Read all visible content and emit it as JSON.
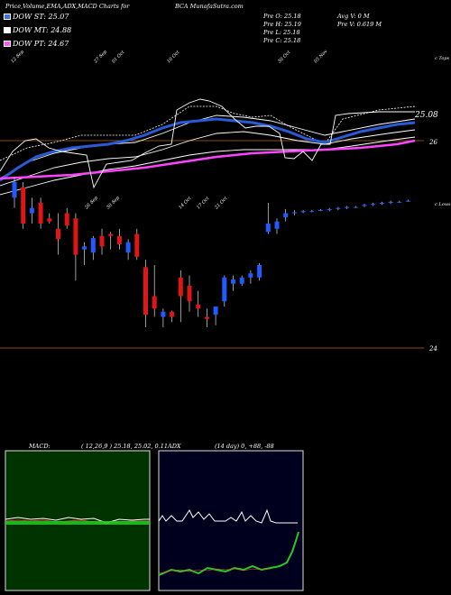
{
  "header": {
    "title_left": "Price,Volume,EMA,ADX,MACD Charts for",
    "title_center": "BCA MunafaSutra.com"
  },
  "legend": [
    {
      "label": "DOW ST: 25.07",
      "color": "#3b6fe8"
    },
    {
      "label": "DOW MT: 24.88",
      "color": "#ffffff"
    },
    {
      "label": "DOW PT: 24.67",
      "color": "#ff55ff"
    }
  ],
  "ohlc_info": {
    "open": "Pre  O: 25.18",
    "high": "Pre  H: 25.19",
    "low": "Pre  L: 25.18",
    "close": "Pre  C: 25.18",
    "avg_volume": "Avg V: 0  M",
    "prev_volume": "Pre  V: 0.619 M"
  },
  "price_panel": {
    "right_labels": {
      "top": "c Tops",
      "ema_value": "25.08",
      "level_26": "26",
      "lows": "c Lows",
      "level_24": "24"
    },
    "level_lines": [
      26,
      24
    ]
  },
  "macd_panel": {
    "label": "MACD:",
    "params": "( 12,26,9 ) 25.18, 25.02, 0.11"
  },
  "adx_panel": {
    "label": "ADX",
    "params": "(14  day) 0, +88, -88"
  },
  "colors": {
    "up": "#1f5bff",
    "down": "#e01515",
    "ema_short": "#2a5bd6",
    "ema_long": "#ff44ff",
    "macd_bg": "#003300",
    "adx_bg": "#00001e",
    "level_line": "#8b4a12"
  },
  "chart_data": {
    "type": "candlestick",
    "y_axis_labels": [
      "26",
      "25.08",
      "24"
    ],
    "indicators": {
      "dow_st": 25.07,
      "dow_mt": 24.88,
      "dow_pt": 24.67,
      "macd": {
        "fast": 12,
        "slow": 26,
        "signal": 9,
        "values": [
          25.18,
          25.02,
          0.11
        ]
      },
      "adx": {
        "period": 14,
        "adx": 0,
        "plus_di": 88,
        "minus_di": -88
      }
    },
    "candles": [
      {
        "o": 25.45,
        "h": 25.65,
        "l": 25.35,
        "c": 25.6
      },
      {
        "o": 25.55,
        "h": 25.6,
        "l": 25.15,
        "c": 25.2
      },
      {
        "o": 25.3,
        "h": 25.45,
        "l": 25.2,
        "c": 25.35
      },
      {
        "o": 25.4,
        "h": 25.45,
        "l": 25.15,
        "c": 25.2
      },
      {
        "o": 25.25,
        "h": 25.3,
        "l": 25.2,
        "c": 25.22
      },
      {
        "o": 25.15,
        "h": 25.3,
        "l": 24.9,
        "c": 25.05
      },
      {
        "o": 25.3,
        "h": 25.35,
        "l": 25.15,
        "c": 25.18
      },
      {
        "o": 25.25,
        "h": 25.3,
        "l": 24.65,
        "c": 24.9
      },
      {
        "o": 24.95,
        "h": 25.02,
        "l": 24.8,
        "c": 24.98
      },
      {
        "o": 24.92,
        "h": 25.08,
        "l": 24.85,
        "c": 25.06
      },
      {
        "o": 25.08,
        "h": 25.15,
        "l": 24.9,
        "c": 24.98
      },
      {
        "o": 25.1,
        "h": 25.12,
        "l": 24.95,
        "c": 25.08
      },
      {
        "o": 25.08,
        "h": 25.15,
        "l": 24.95,
        "c": 25.0
      },
      {
        "o": 24.92,
        "h": 25.05,
        "l": 24.85,
        "c": 25.02
      },
      {
        "o": 25.1,
        "h": 25.15,
        "l": 24.85,
        "c": 24.88
      },
      {
        "o": 24.78,
        "h": 24.85,
        "l": 24.2,
        "c": 24.32
      },
      {
        "o": 24.5,
        "h": 24.8,
        "l": 24.3,
        "c": 24.38
      },
      {
        "o": 24.3,
        "h": 24.38,
        "l": 24.2,
        "c": 24.35
      },
      {
        "o": 24.35,
        "h": 24.36,
        "l": 24.25,
        "c": 24.3
      },
      {
        "o": 24.68,
        "h": 24.75,
        "l": 24.25,
        "c": 24.5
      },
      {
        "o": 24.6,
        "h": 24.7,
        "l": 24.35,
        "c": 24.45
      },
      {
        "o": 24.42,
        "h": 24.55,
        "l": 24.3,
        "c": 24.38
      },
      {
        "o": 24.3,
        "h": 24.38,
        "l": 24.2,
        "c": 24.28
      },
      {
        "o": 24.32,
        "h": 24.4,
        "l": 24.22,
        "c": 24.4
      },
      {
        "o": 24.45,
        "h": 24.7,
        "l": 24.4,
        "c": 24.68
      },
      {
        "o": 24.62,
        "h": 24.7,
        "l": 24.55,
        "c": 24.66
      },
      {
        "o": 24.62,
        "h": 24.7,
        "l": 24.6,
        "c": 24.68
      },
      {
        "o": 24.68,
        "h": 24.75,
        "l": 24.62,
        "c": 24.72
      },
      {
        "o": 24.68,
        "h": 24.82,
        "l": 24.65,
        "c": 24.8
      },
      {
        "o": 25.12,
        "h": 25.4,
        "l": 25.1,
        "c": 25.2
      },
      {
        "o": 25.15,
        "h": 25.25,
        "l": 25.1,
        "c": 25.22
      },
      {
        "o": 25.26,
        "h": 25.34,
        "l": 25.22,
        "c": 25.3
      },
      {
        "o": 25.3,
        "h": 25.33,
        "l": 25.28,
        "c": 25.31
      },
      {
        "o": 25.31,
        "h": 25.33,
        "l": 25.3,
        "c": 25.32
      },
      {
        "o": 25.32,
        "h": 25.33,
        "l": 25.31,
        "c": 25.32
      },
      {
        "o": 25.33,
        "h": 25.34,
        "l": 25.32,
        "c": 25.33
      },
      {
        "o": 25.33,
        "h": 25.35,
        "l": 25.32,
        "c": 25.34
      },
      {
        "o": 25.34,
        "h": 25.36,
        "l": 25.33,
        "c": 25.35
      },
      {
        "o": 25.35,
        "h": 25.37,
        "l": 25.34,
        "c": 25.36
      },
      {
        "o": 25.36,
        "h": 25.37,
        "l": 25.35,
        "c": 25.36
      },
      {
        "o": 25.37,
        "h": 25.39,
        "l": 25.36,
        "c": 25.38
      },
      {
        "o": 25.38,
        "h": 25.4,
        "l": 25.37,
        "c": 25.39
      },
      {
        "o": 25.4,
        "h": 25.41,
        "l": 25.38,
        "c": 25.4
      },
      {
        "o": 25.4,
        "h": 25.42,
        "l": 25.39,
        "c": 25.41
      },
      {
        "o": 25.41,
        "h": 25.42,
        "l": 25.4,
        "c": 25.41
      },
      {
        "o": 25.42,
        "h": 25.43,
        "l": 25.41,
        "c": 25.42
      }
    ]
  }
}
